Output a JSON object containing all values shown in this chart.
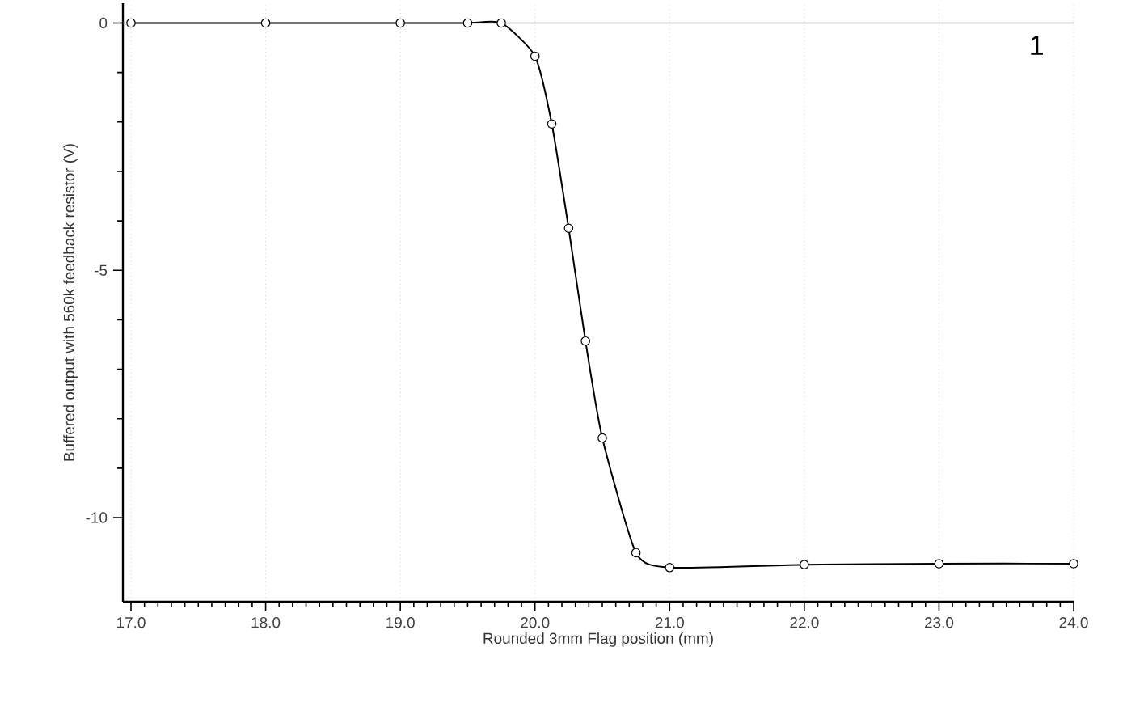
{
  "chart_data": {
    "type": "line",
    "xlabel": "Rounded 3mm Flag position (mm)",
    "ylabel": "Buffered output with 560k feedback resistor (V)",
    "annotations": [
      "1"
    ],
    "x": [
      17,
      18,
      19,
      19.5,
      19.75,
      20,
      20.125,
      20.25,
      20.375,
      20.5,
      20.75,
      21,
      22,
      23,
      24
    ],
    "values": [
      0,
      0,
      0,
      0,
      0,
      -0.67,
      -2.04,
      -4.15,
      -6.43,
      -8.39,
      -10.71,
      -11.01,
      -10.95,
      -10.93,
      -10.93
    ],
    "color": "#000000",
    "marker": "circle",
    "line_style": "solid",
    "grid": "x",
    "xlim": [
      16.94,
      24
    ],
    "ylim": [
      -11.7,
      0.4
    ],
    "xticks": [
      {
        "value": 17,
        "label": "17.0"
      },
      {
        "value": 18,
        "label": "18.0"
      },
      {
        "value": 19,
        "label": "19.0"
      },
      {
        "value": 20,
        "label": "20.0"
      },
      {
        "value": 21,
        "label": "21.0"
      },
      {
        "value": 22,
        "label": "22.0"
      },
      {
        "value": 23,
        "label": "23.0"
      },
      {
        "value": 24,
        "label": "24.0"
      }
    ],
    "yticks": [
      -10,
      -5,
      0
    ],
    "ref_lines": [
      {
        "axis": "y",
        "value": 0,
        "color": "#aaaaaa"
      }
    ]
  }
}
